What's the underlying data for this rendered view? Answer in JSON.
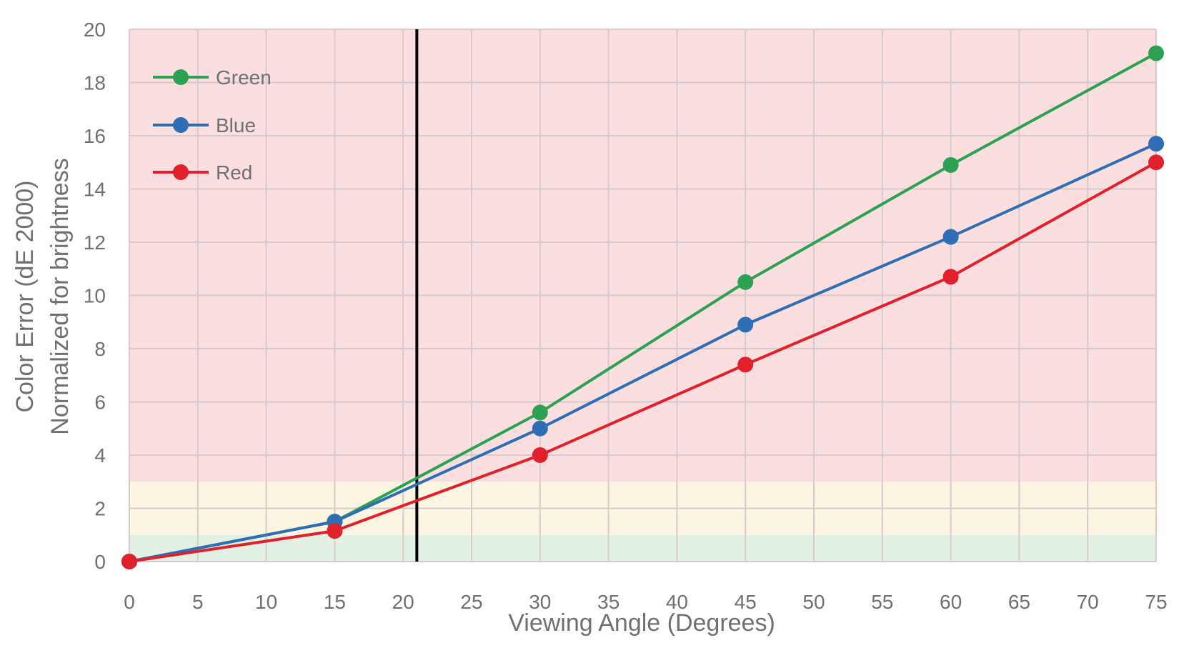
{
  "chart_data": {
    "type": "line",
    "xlabel": "Viewing Angle (Degrees)",
    "ylabel_line1": "Color Error (dE 2000)",
    "ylabel_line2": "Normalized for brightness",
    "xlim": [
      0,
      75
    ],
    "ylim": [
      0,
      20
    ],
    "x_ticks": [
      "0",
      "5",
      "10",
      "15",
      "20",
      "25",
      "30",
      "35",
      "40",
      "45",
      "50",
      "55",
      "60",
      "65",
      "70",
      "75"
    ],
    "y_ticks": [
      "0",
      "2",
      "4",
      "6",
      "8",
      "10",
      "12",
      "14",
      "16",
      "18",
      "20"
    ],
    "grid": true,
    "legend_position": "top-left",
    "x": [
      0,
      15,
      30,
      45,
      60,
      75
    ],
    "series": [
      {
        "name": "Green",
        "color": "#2ea053",
        "values": [
          0,
          1.5,
          5.6,
          10.5,
          14.9,
          19.1
        ]
      },
      {
        "name": "Blue",
        "color": "#2f6db5",
        "values": [
          0,
          1.5,
          5.0,
          8.9,
          12.2,
          15.7
        ]
      },
      {
        "name": "Red",
        "color": "#e0202a",
        "values": [
          0,
          1.15,
          4.0,
          7.4,
          10.7,
          15.0
        ]
      }
    ],
    "vertical_marker_x": 21,
    "background_bands": [
      {
        "from": 0,
        "to": 1,
        "color": "#e3f1e4"
      },
      {
        "from": 1,
        "to": 3,
        "color": "#fbf5e2"
      },
      {
        "from": 3,
        "to": 20,
        "color": "#fbdfe0"
      }
    ]
  }
}
